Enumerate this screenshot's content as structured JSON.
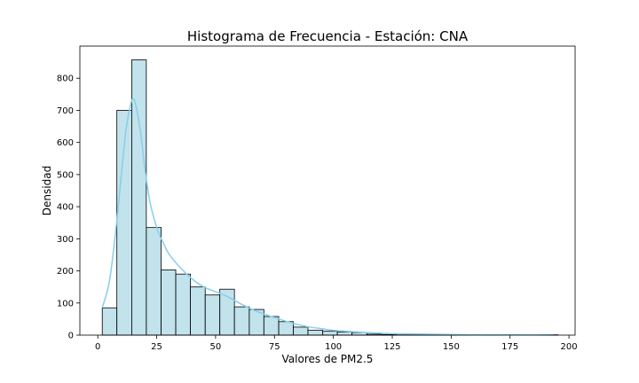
{
  "chart_data": {
    "type": "bar",
    "title": "Histograma de Frecuencia - Estación: CNA",
    "xlabel": "Valores de PM2.5",
    "ylabel": "Densidad",
    "xlim": [
      -7.6,
      202.6
    ],
    "ylim": [
      0,
      900
    ],
    "x_ticks": [
      0,
      25,
      50,
      75,
      100,
      125,
      150,
      175,
      200
    ],
    "y_ticks": [
      0,
      100,
      200,
      300,
      400,
      500,
      600,
      700,
      800
    ],
    "grid": false,
    "legend": "none",
    "bin_edges": [
      1.9,
      8.1,
      14.4,
      20.6,
      26.9,
      33.1,
      39.3,
      45.6,
      51.8,
      58.0,
      64.3,
      70.5,
      76.8,
      83.0,
      89.2,
      95.5,
      101.7,
      107.9,
      114.2,
      120.4,
      126.7,
      132.9,
      139.1,
      145.4,
      151.6,
      157.8,
      164.1,
      170.3,
      176.6,
      182.8,
      189.0,
      195.3
    ],
    "counts": [
      85,
      700,
      857,
      335,
      203,
      190,
      150,
      125,
      143,
      88,
      80,
      58,
      42,
      25,
      15,
      12,
      10,
      8,
      3,
      2,
      1,
      1,
      1,
      1,
      1,
      0,
      1,
      0,
      0,
      1,
      1
    ],
    "kde": {
      "x": [
        1.9,
        5,
        8,
        10,
        12,
        14,
        15,
        16,
        18,
        20,
        22,
        24,
        26,
        28,
        30,
        35,
        40,
        45,
        50,
        55,
        60,
        65,
        70,
        75,
        80,
        85,
        90,
        95,
        100,
        110,
        120,
        130,
        140,
        150,
        160,
        170,
        180,
        193.5
      ],
      "y": [
        85,
        170,
        350,
        500,
        640,
        720,
        735,
        720,
        640,
        520,
        420,
        360,
        315,
        285,
        255,
        210,
        175,
        150,
        135,
        120,
        100,
        82,
        67,
        55,
        43,
        33,
        25,
        20,
        15,
        10,
        6,
        4,
        3,
        2,
        1,
        1,
        1,
        0
      ]
    },
    "colors": {
      "bar_fill": "#add8e6",
      "bar_edge": "#000000",
      "kde_line": "#87ceeb"
    }
  }
}
